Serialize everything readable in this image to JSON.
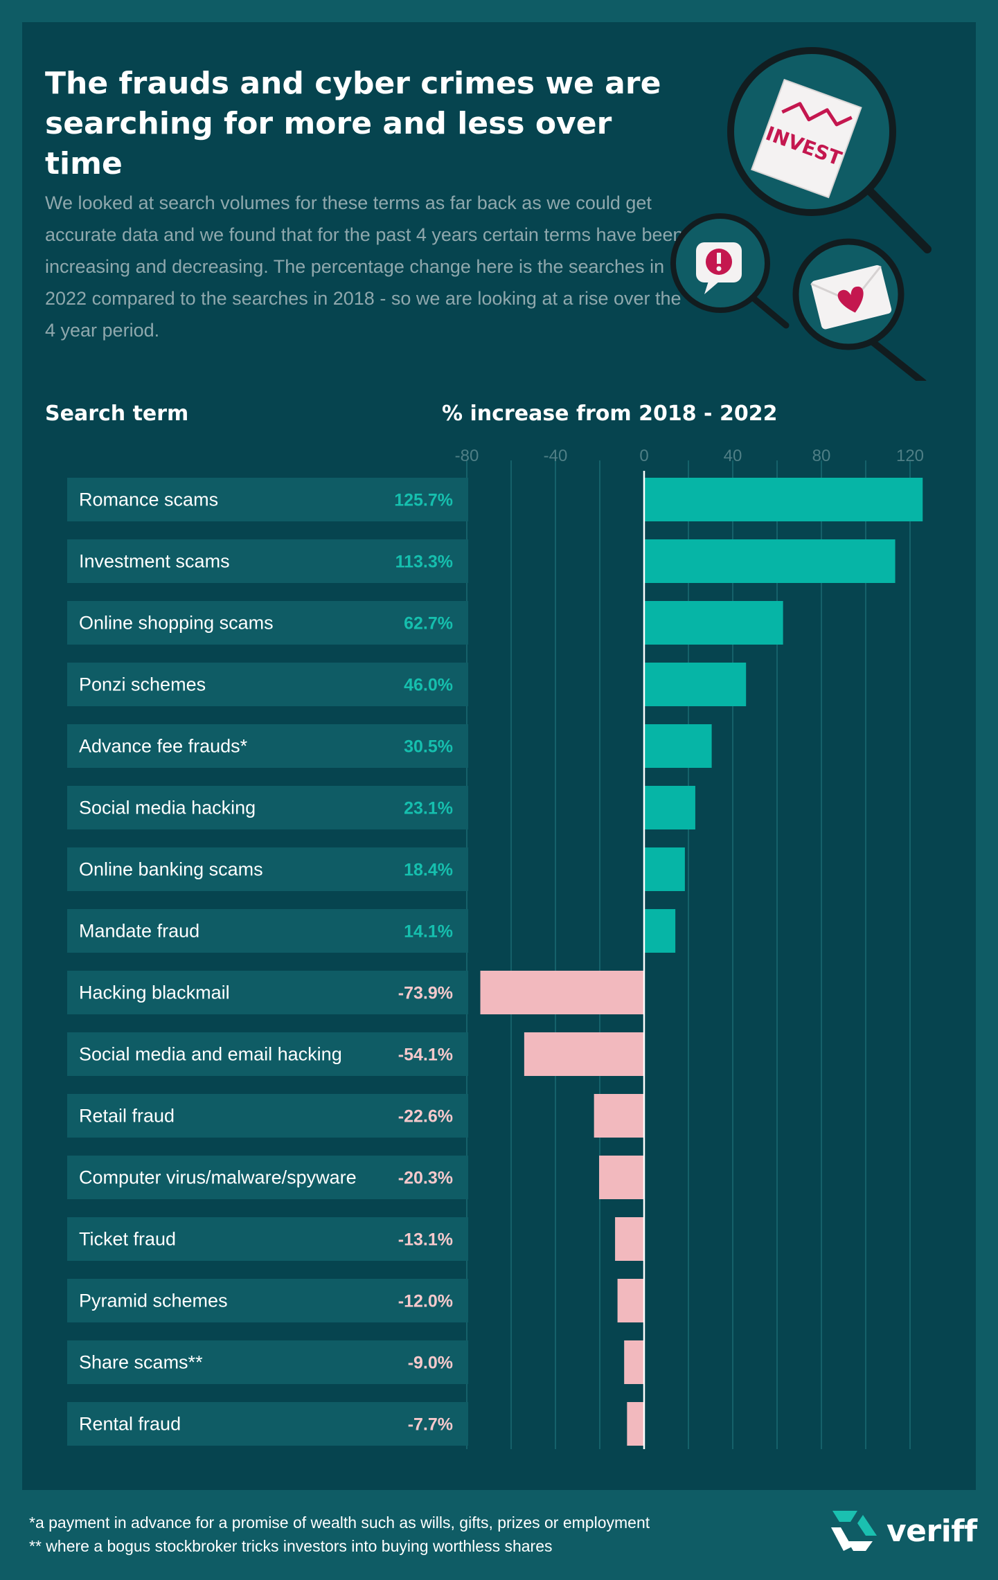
{
  "title": "The frauds and cyber crimes we are searching for more and less over time",
  "intro": "We looked at search volumes for these terms as far back as we could get accurate data and we found that for the past 4 years certain terms have been increasing and decreasing. The percentage change here is the searches in 2022 compared to the searches in 2018 - so we are looking at a rise over the 4 year period.",
  "illustration": {
    "invest_label": "INVEST",
    "icons": [
      "magnifier-invest-icon",
      "alert-chat-icon",
      "heart-envelope-icon"
    ]
  },
  "chart_data": {
    "type": "bar",
    "orientation": "horizontal",
    "header_term": "Search term",
    "header_value": "% increase from 2018 - 2022",
    "xlim": [
      -80,
      130
    ],
    "ticks": [
      "-80",
      "-40",
      "0",
      "40",
      "80",
      "120"
    ],
    "tick_values": [
      -80,
      -40,
      0,
      40,
      80,
      120
    ],
    "grid": true,
    "categories": [
      "Romance scams",
      "Investment scams",
      "Online shopping scams",
      "Ponzi schemes",
      "Advance fee frauds*",
      "Social media hacking",
      "Online banking scams",
      "Mandate fraud",
      "Hacking blackmail",
      "Social media and email hacking",
      "Retail fraud",
      "Computer virus/malware/spyware",
      "Ticket fraud",
      "Pyramid schemes",
      "Share scams**",
      "Rental fraud"
    ],
    "values": [
      125.7,
      113.3,
      62.7,
      46.0,
      30.5,
      23.1,
      18.4,
      14.1,
      -73.9,
      -54.1,
      -22.6,
      -20.3,
      -13.1,
      -12.0,
      -9.0,
      -7.7
    ],
    "labels": [
      "125.7%",
      "113.3%",
      "62.7%",
      "46.0%",
      "30.5%",
      "23.1%",
      "18.4%",
      "14.1%",
      "-73.9%",
      "-54.1%",
      "-22.6%",
      "-20.3%",
      "-13.1%",
      "-12.0%",
      "-9.0%",
      "-7.7%"
    ],
    "colors": {
      "positive": "#06b5a6",
      "negative": "#f2b9be",
      "positive_label": "#16bfae",
      "negative_label": "#f6c9cc"
    }
  },
  "footnotes": [
    "*a payment in advance for a promise of wealth such as wills, gifts, prizes or employment",
    "** where a bogus stockbroker tricks investors into buying worthless shares"
  ],
  "brand": "veriff",
  "colors": {
    "background": "#0f5c65",
    "panel": "#06444f",
    "row": "#0f5c65",
    "accent_teal": "#06b5a6",
    "accent_pink": "#f2b9be",
    "magenta": "#c4174f"
  }
}
